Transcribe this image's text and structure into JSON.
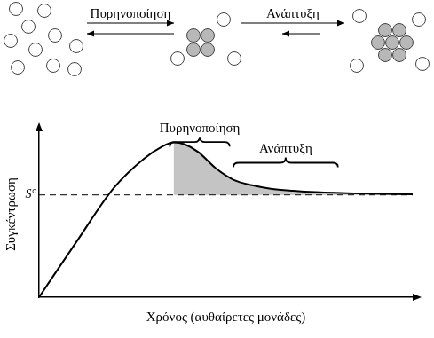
{
  "diagram": {
    "steps": [
      "Πυρηνοποίηση",
      "Ανάπτυξη"
    ]
  },
  "chart_data": {
    "type": "line",
    "xlabel": "Χρόνος (αυθαίρετες μονάδες)",
    "ylabel": "Συγκέντρωση",
    "x": [
      0,
      10,
      20,
      28,
      33,
      36,
      39,
      42.6,
      47.4,
      52,
      57,
      62,
      68,
      74,
      86,
      100
    ],
    "values": [
      0,
      40,
      79,
      100,
      109,
      112,
      110.5,
      105,
      93,
      85,
      81,
      78.5,
      77,
      76,
      75,
      74.5
    ],
    "color": "#000000",
    "xlim": [
      0,
      100
    ],
    "ylim": [
      0,
      120
    ],
    "grid": false,
    "tick_labels": false,
    "reference_line": {
      "label": "S°",
      "value": 74,
      "line_style": "dashed"
    },
    "annotations": [
      {
        "text": "Πυρηνοποίηση",
        "x": [
          35,
          51
        ],
        "y": 109
      },
      {
        "text": "Ανάπτυξη",
        "x": [
          52,
          80
        ],
        "y": 94
      }
    ]
  }
}
